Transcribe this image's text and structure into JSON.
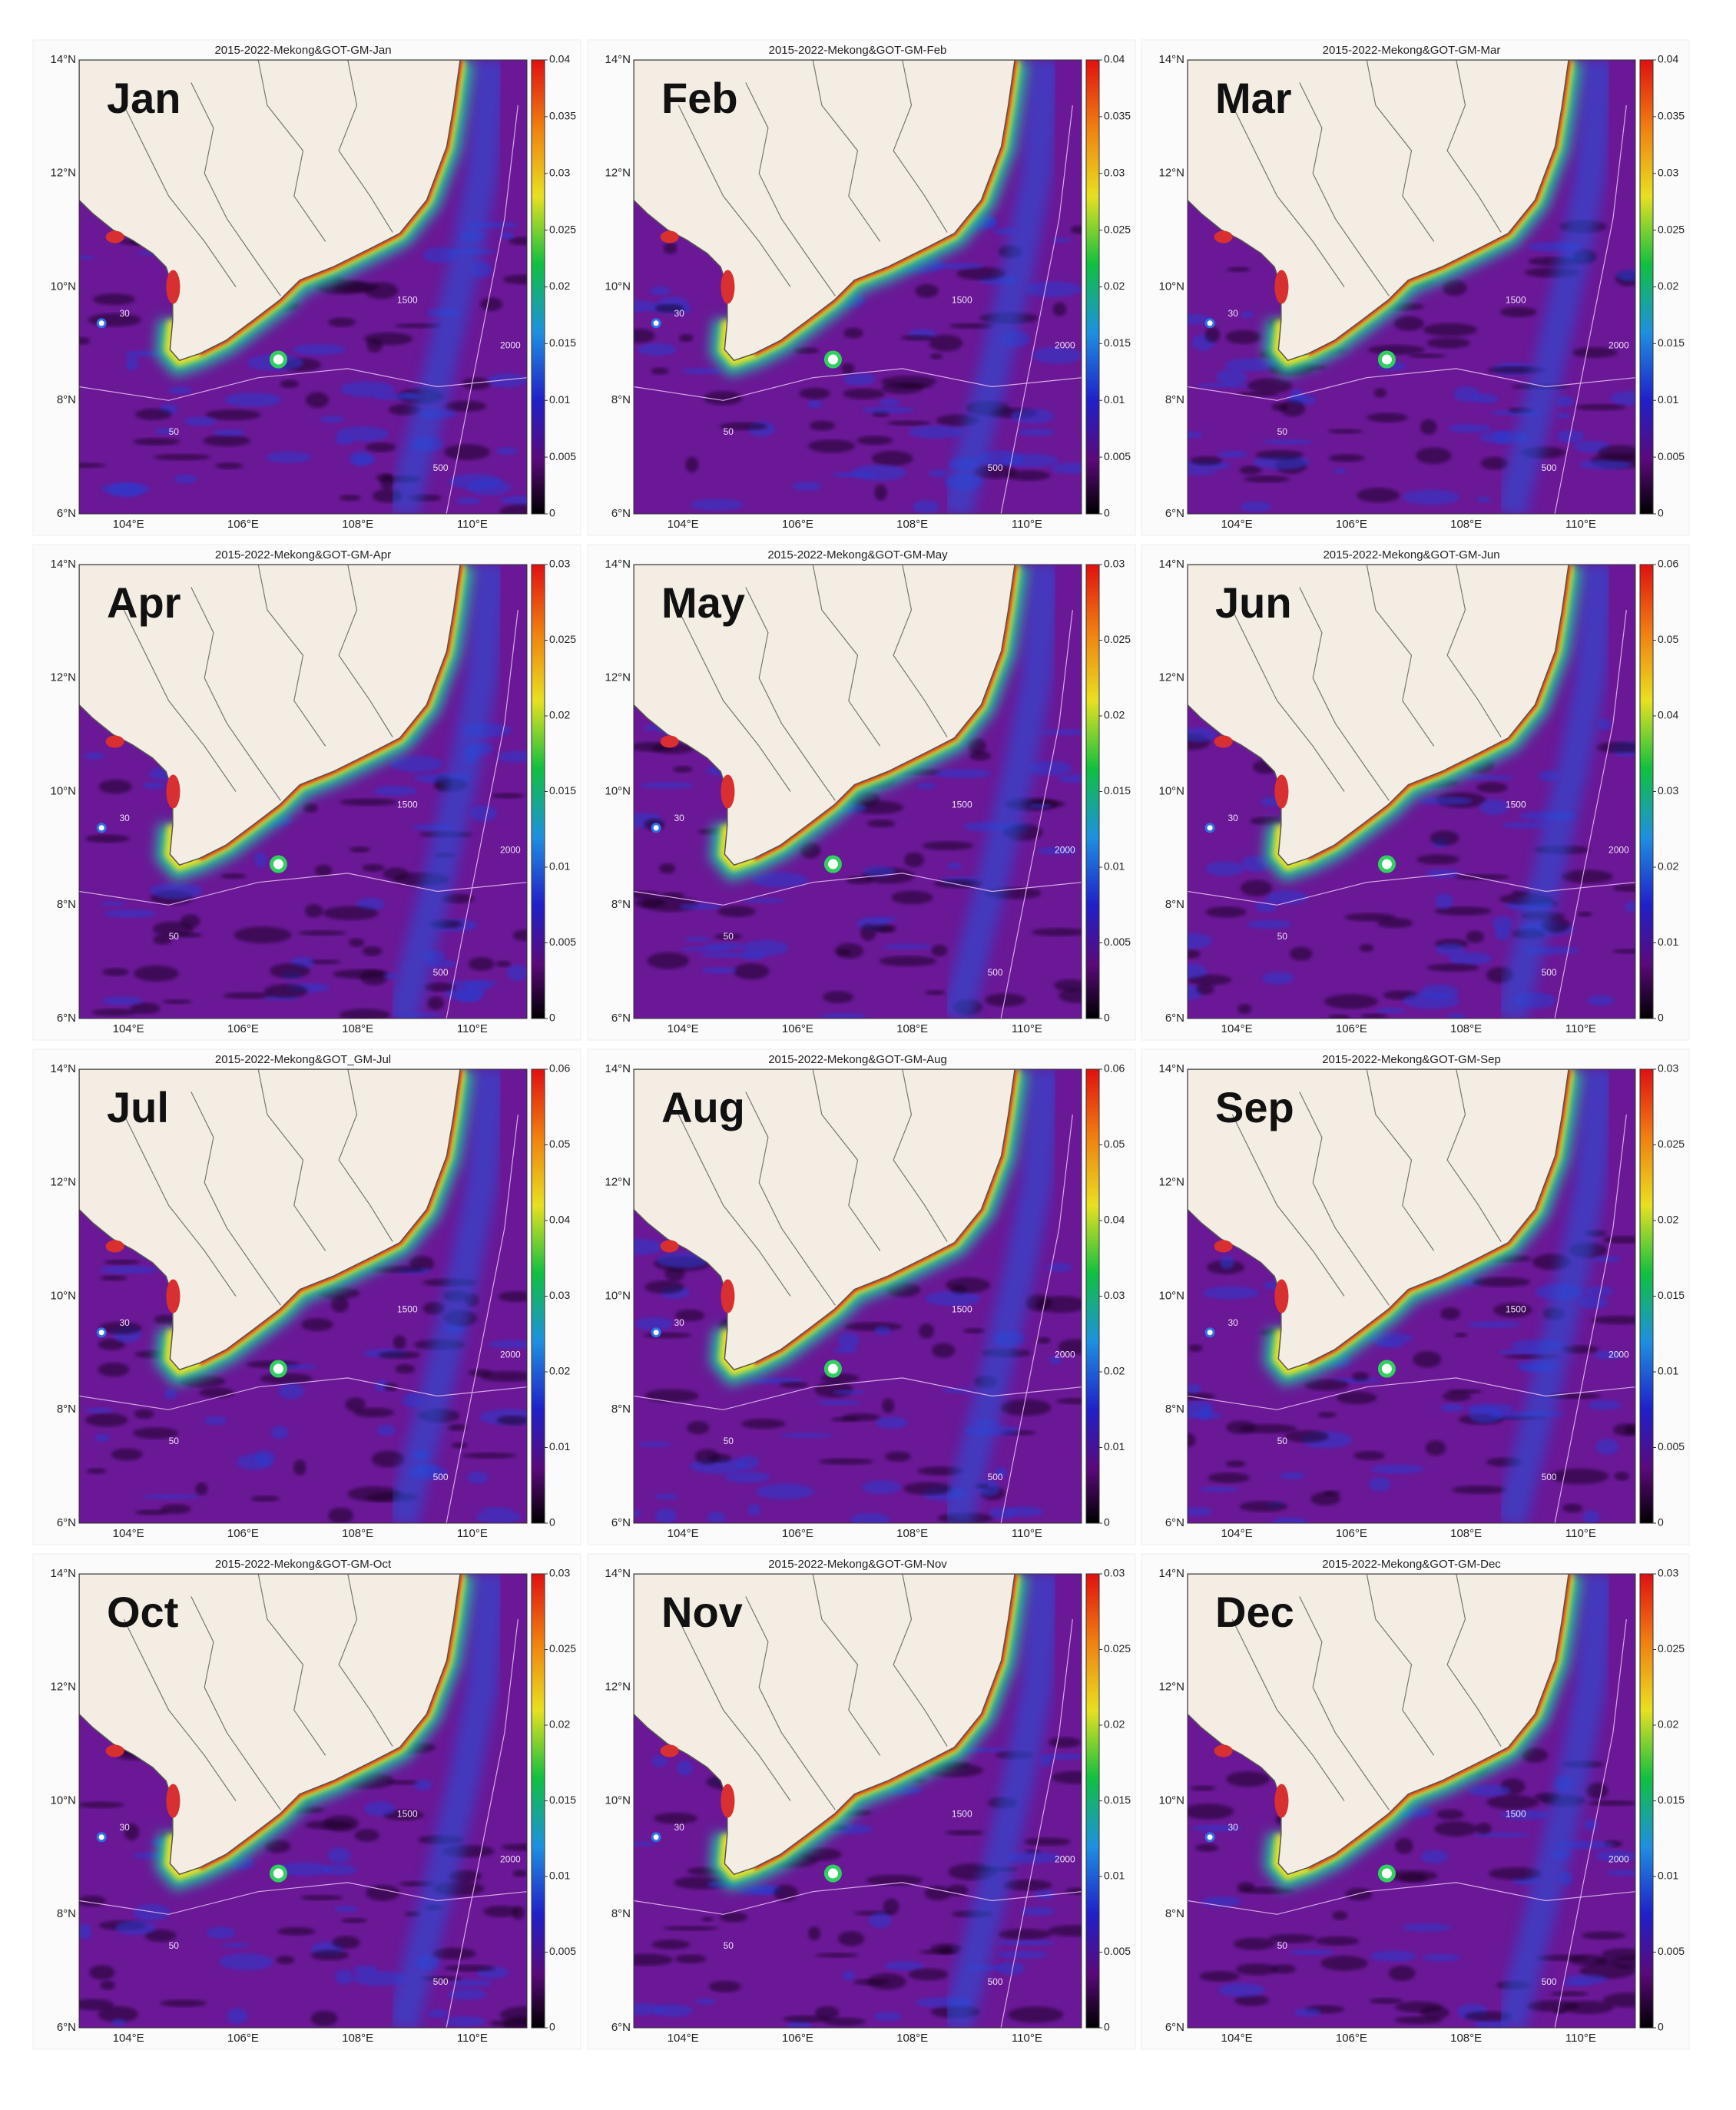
{
  "panels": [
    {
      "title": "2015-2022-Mekong&GOT-GM-Jan",
      "month": "Jan",
      "colorbar": {
        "clim": [
          0,
          0.04
        ],
        "ticks": [
          0,
          0.005,
          0.01,
          0.015,
          0.02,
          0.025,
          0.03,
          0.035,
          0.04
        ]
      }
    },
    {
      "title": "2015-2022-Mekong&GOT-GM-Feb",
      "month": "Feb",
      "colorbar": {
        "clim": [
          0,
          0.04
        ],
        "ticks": [
          0,
          0.005,
          0.01,
          0.015,
          0.02,
          0.025,
          0.03,
          0.035,
          0.04
        ]
      }
    },
    {
      "title": "2015-2022-Mekong&GOT-GM-Mar",
      "month": "Mar",
      "colorbar": {
        "clim": [
          0,
          0.04
        ],
        "ticks": [
          0,
          0.005,
          0.01,
          0.015,
          0.02,
          0.025,
          0.03,
          0.035,
          0.04
        ]
      }
    },
    {
      "title": "2015-2022-Mekong&GOT-GM-Apr",
      "month": "Apr",
      "colorbar": {
        "clim": [
          0,
          0.03
        ],
        "ticks": [
          0,
          0.005,
          0.01,
          0.015,
          0.02,
          0.025,
          0.03
        ]
      }
    },
    {
      "title": "2015-2022-Mekong&GOT-GM-May",
      "month": "May",
      "colorbar": {
        "clim": [
          0,
          0.03
        ],
        "ticks": [
          0,
          0.005,
          0.01,
          0.015,
          0.02,
          0.025,
          0.03
        ]
      }
    },
    {
      "title": "2015-2022-Mekong&GOT-GM-Jun",
      "month": "Jun",
      "colorbar": {
        "clim": [
          0,
          0.06
        ],
        "ticks": [
          0,
          0.01,
          0.02,
          0.03,
          0.04,
          0.05,
          0.06
        ]
      }
    },
    {
      "title": "2015-2022-Mekong&GOT_GM-Jul",
      "month": "Jul",
      "colorbar": {
        "clim": [
          0,
          0.06
        ],
        "ticks": [
          0,
          0.01,
          0.02,
          0.03,
          0.04,
          0.05,
          0.06
        ]
      }
    },
    {
      "title": "2015-2022-Mekong&GOT-GM-Aug",
      "month": "Aug",
      "colorbar": {
        "clim": [
          0,
          0.06
        ],
        "ticks": [
          0,
          0.01,
          0.02,
          0.03,
          0.04,
          0.05,
          0.06
        ]
      }
    },
    {
      "title": "2015-2022-Mekong&GOT-GM-Sep",
      "month": "Sep",
      "colorbar": {
        "clim": [
          0,
          0.03
        ],
        "ticks": [
          0,
          0.005,
          0.01,
          0.015,
          0.02,
          0.025,
          0.03
        ]
      }
    },
    {
      "title": "2015-2022-Mekong&GOT-GM-Oct",
      "month": "Oct",
      "colorbar": {
        "clim": [
          0,
          0.03
        ],
        "ticks": [
          0,
          0.005,
          0.01,
          0.015,
          0.02,
          0.025,
          0.03
        ]
      }
    },
    {
      "title": "2015-2022-Mekong&GOT-GM-Nov",
      "month": "Nov",
      "colorbar": {
        "clim": [
          0,
          0.03
        ],
        "ticks": [
          0,
          0.005,
          0.01,
          0.015,
          0.02,
          0.025,
          0.03
        ]
      }
    },
    {
      "title": "2015-2022-Mekong&GOT-GM-Dec",
      "month": "Dec",
      "colorbar": {
        "clim": [
          0,
          0.03
        ],
        "ticks": [
          0,
          0.005,
          0.01,
          0.015,
          0.02,
          0.025,
          0.03
        ]
      }
    }
  ],
  "lat_ticks": [
    "14°N",
    "12°N",
    "10°N",
    "8°N",
    "6°N"
  ],
  "lon_ticks": [
    "104°E",
    "106°E",
    "108°E",
    "110°E"
  ],
  "contour_labels": [
    30,
    50,
    500,
    1500,
    2000
  ]
}
